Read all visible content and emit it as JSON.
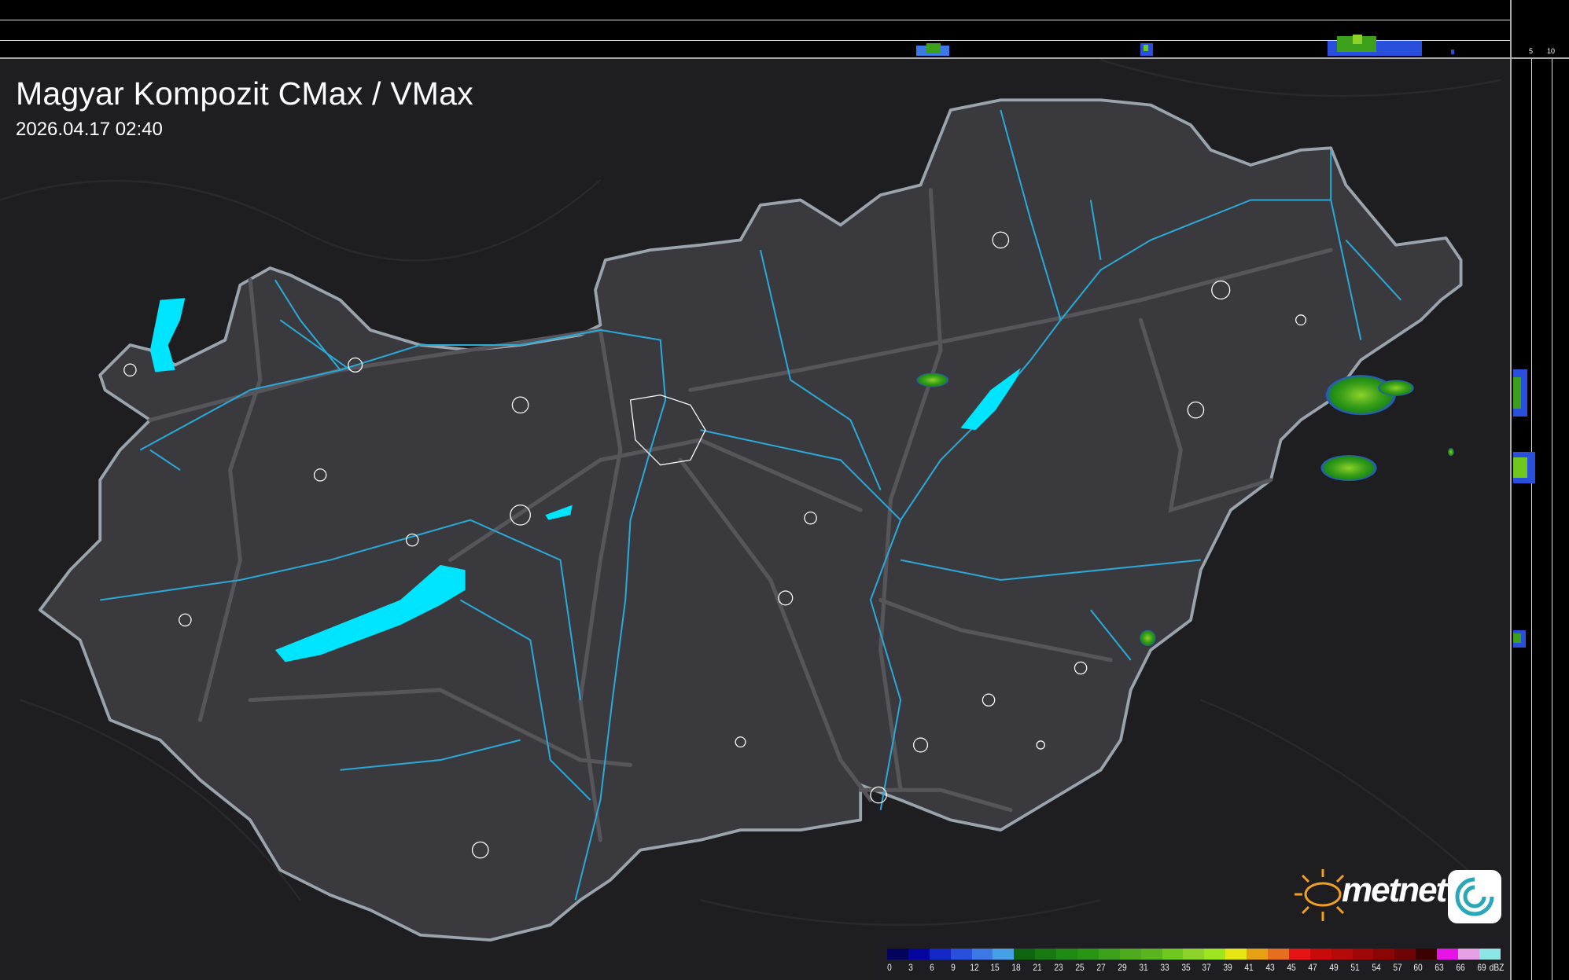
{
  "header": {
    "title": "Magyar Kompozit CMax / VMax",
    "timestamp": "2026.04.17 02:40"
  },
  "top_profile": {
    "ticks": [
      "10",
      "5"
    ]
  },
  "side_profile": {
    "ticks": [
      "5",
      "10"
    ]
  },
  "colorbar": {
    "unit": "dBZ",
    "labels": [
      "0",
      "3",
      "6",
      "9",
      "12",
      "15",
      "18",
      "21",
      "23",
      "25",
      "27",
      "29",
      "31",
      "33",
      "35",
      "37",
      "39",
      "41",
      "43",
      "45",
      "47",
      "49",
      "51",
      "54",
      "57",
      "60",
      "63",
      "66",
      "69"
    ],
    "colors": [
      "#03035e",
      "#0505a0",
      "#1428c8",
      "#2850dc",
      "#3c78e6",
      "#46a0e6",
      "#0f6410",
      "#187812",
      "#1e8c14",
      "#289614",
      "#3ca01a",
      "#50aa1e",
      "#5ab41e",
      "#6ec81e",
      "#8cd228",
      "#a0e61e",
      "#e6e614",
      "#e6a014",
      "#e66e1e",
      "#e61414",
      "#c80a0a",
      "#b40a0a",
      "#a00808",
      "#8c0505",
      "#6e0303",
      "#3c0202",
      "#e614e6",
      "#e6a0e6",
      "#8ce6e6"
    ]
  },
  "logo": {
    "text": "metnet",
    "accent": "#f0a020"
  },
  "colors": {
    "land": "#3a3a3e",
    "terrain": "#1c1c1f",
    "border": "#9aa4ad",
    "river": "#2aa8d8",
    "lake": "#00e5ff",
    "road": "#6a6a6e",
    "echo": "#3cb43c"
  }
}
